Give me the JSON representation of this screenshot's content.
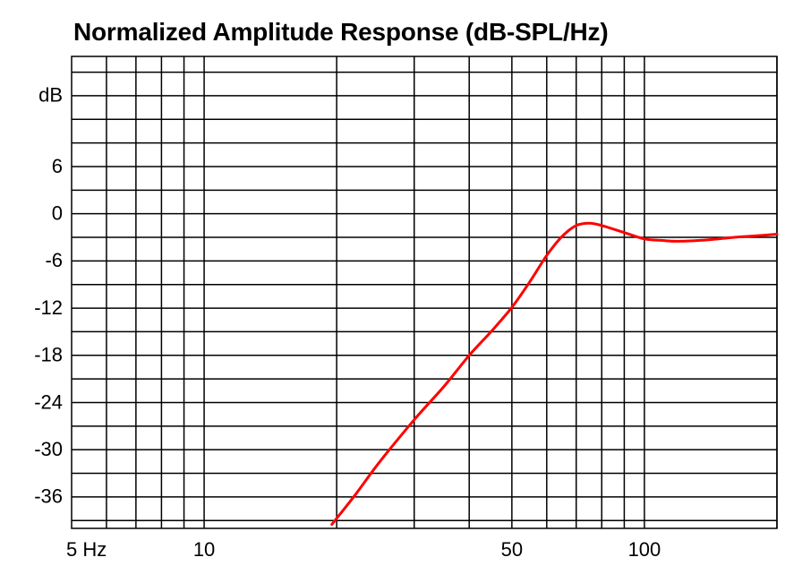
{
  "chart_data": {
    "type": "line",
    "title": "Normalized Amplitude Response (dB-SPL/Hz)",
    "y_unit_label": "dB",
    "x_scale": "log",
    "xlim": [
      5,
      200
    ],
    "ylim": [
      -40,
      20
    ],
    "x_tick_labels": [
      {
        "value": 5,
        "label": "5 Hz"
      },
      {
        "value": 10,
        "label": "10"
      },
      {
        "value": 50,
        "label": "50"
      },
      {
        "value": 100,
        "label": "100"
      }
    ],
    "y_tick_labels": [
      {
        "value": 6,
        "label": "6"
      },
      {
        "value": 0,
        "label": "0"
      },
      {
        "value": -6,
        "label": "-6"
      },
      {
        "value": -12,
        "label": "-12"
      },
      {
        "value": -18,
        "label": "-18"
      },
      {
        "value": -24,
        "label": "-24"
      },
      {
        "value": -30,
        "label": "-30"
      },
      {
        "value": -36,
        "label": "-36"
      }
    ],
    "x_gridlines": [
      6,
      7,
      8,
      9,
      10,
      20,
      30,
      40,
      50,
      60,
      70,
      80,
      90,
      100,
      200
    ],
    "y_gridlines": [
      18,
      15,
      12,
      9,
      6,
      3,
      0,
      -3,
      -6,
      -9,
      -12,
      -15,
      -18,
      -21,
      -24,
      -27,
      -30,
      -33,
      -36,
      -39
    ],
    "grid": true,
    "series": [
      {
        "color": "#ff0000",
        "x": [
          19.5,
          22,
          25,
          30,
          35,
          40,
          45,
          50,
          55,
          60,
          65,
          70,
          75,
          80,
          90,
          100,
          110,
          120,
          140,
          160,
          180,
          200
        ],
        "y": [
          -39.5,
          -35.8,
          -31.6,
          -26.2,
          -22.0,
          -18.0,
          -14.9,
          -11.9,
          -8.6,
          -5.3,
          -2.9,
          -1.5,
          -1.2,
          -1.5,
          -2.4,
          -3.2,
          -3.4,
          -3.5,
          -3.3,
          -3.0,
          -2.8,
          -2.6
        ]
      }
    ]
  }
}
